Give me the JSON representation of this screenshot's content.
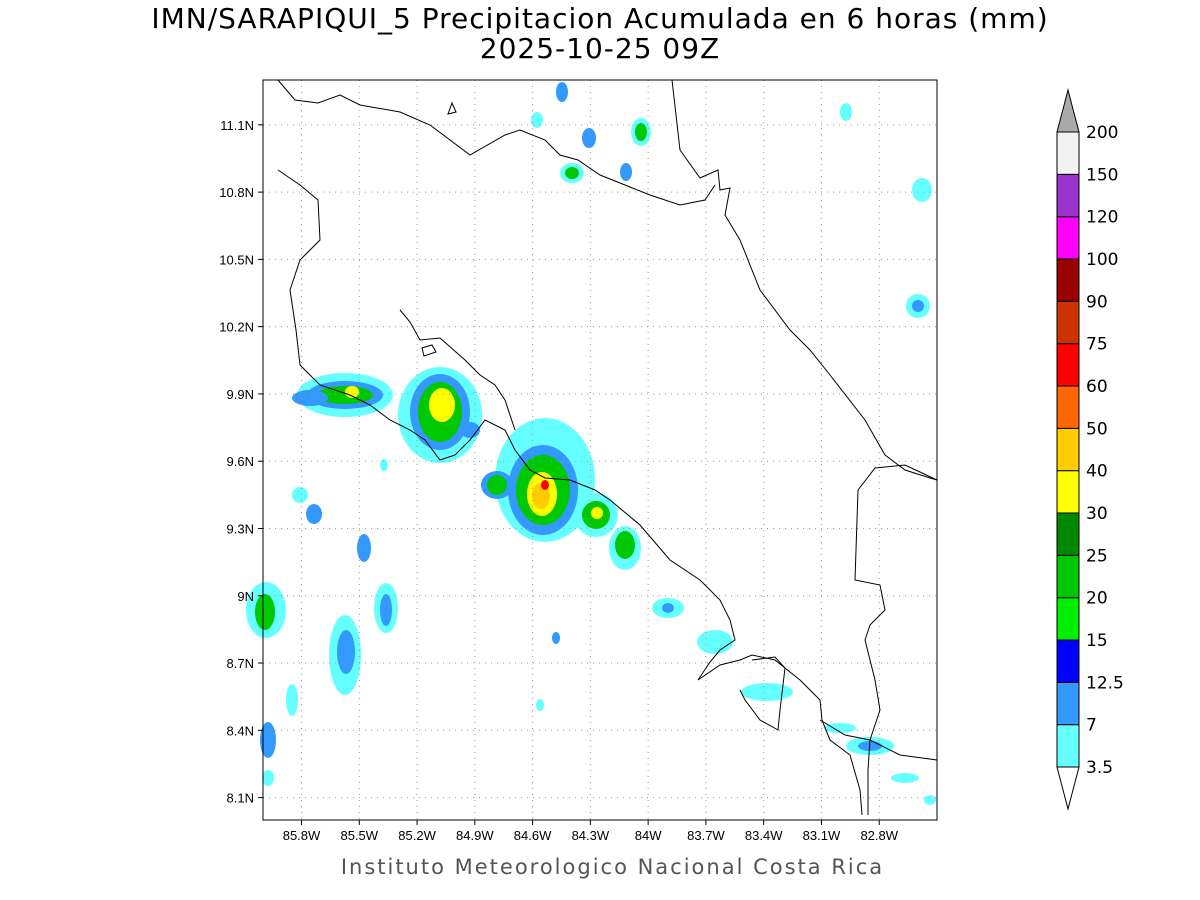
{
  "title": {
    "line1": "IMN/SARAPIQUI_5 Precipitacion Acumulada en 6 horas (mm)",
    "line2": "2025-10-25 09Z"
  },
  "footer": "Instituto Meteorologico Nacional Costa Rica",
  "map": {
    "lon_range": [
      -86.0,
      -82.5
    ],
    "lat_range": [
      8.0,
      11.3
    ],
    "lon_ticks": [
      {
        "value": -85.8,
        "label": "85.8W"
      },
      {
        "value": -85.5,
        "label": "85.5W"
      },
      {
        "value": -85.2,
        "label": "85.2W"
      },
      {
        "value": -84.9,
        "label": "84.9W"
      },
      {
        "value": -84.6,
        "label": "84.6W"
      },
      {
        "value": -84.3,
        "label": "84.3W"
      },
      {
        "value": -84.0,
        "label": "84W"
      },
      {
        "value": -83.7,
        "label": "83.7W"
      },
      {
        "value": -83.4,
        "label": "83.4W"
      },
      {
        "value": -83.1,
        "label": "83.1W"
      },
      {
        "value": -82.8,
        "label": "82.8W"
      }
    ],
    "lat_ticks": [
      {
        "value": 11.1,
        "label": "11.1N"
      },
      {
        "value": 10.8,
        "label": "10.8N"
      },
      {
        "value": 10.5,
        "label": "10.5N"
      },
      {
        "value": 10.2,
        "label": "10.2N"
      },
      {
        "value": 9.9,
        "label": "9.9N"
      },
      {
        "value": 9.6,
        "label": "9.6N"
      },
      {
        "value": 9.3,
        "label": "9.3N"
      },
      {
        "value": 9.0,
        "label": "9N"
      },
      {
        "value": 8.7,
        "label": "8.7N"
      },
      {
        "value": 8.4,
        "label": "8.4N"
      },
      {
        "value": 8.1,
        "label": "8.1N"
      }
    ],
    "grid": "dotted",
    "colors": {
      "3.5": "#66ffff",
      "7": "#3399ff",
      "12.5": "#0000ff",
      "15": "#00ee00",
      "20": "#00c800",
      "25": "#008800",
      "30": "#ffff00",
      "40": "#ffcc00",
      "50": "#ff6600",
      "60": "#ff0000",
      "75": "#cc3300",
      "90": "#990000",
      "100": "#ff00ff",
      "120": "#9933cc",
      "150": "#f2f2f2",
      "200": "#aaaaaa"
    }
  },
  "colorbar": {
    "labels": [
      "3.5",
      "7",
      "12.5",
      "15",
      "20",
      "25",
      "30",
      "40",
      "50",
      "60",
      "75",
      "90",
      "100",
      "120",
      "150",
      "200"
    ],
    "colors": [
      "#ffffff",
      "#66ffff",
      "#3399ff",
      "#0000ff",
      "#00ee00",
      "#00c800",
      "#008800",
      "#ffff00",
      "#ffcc00",
      "#ff6600",
      "#ff0000",
      "#cc3300",
      "#990000",
      "#ff00ff",
      "#9933cc",
      "#f2f2f2",
      "#aaaaaa"
    ]
  }
}
